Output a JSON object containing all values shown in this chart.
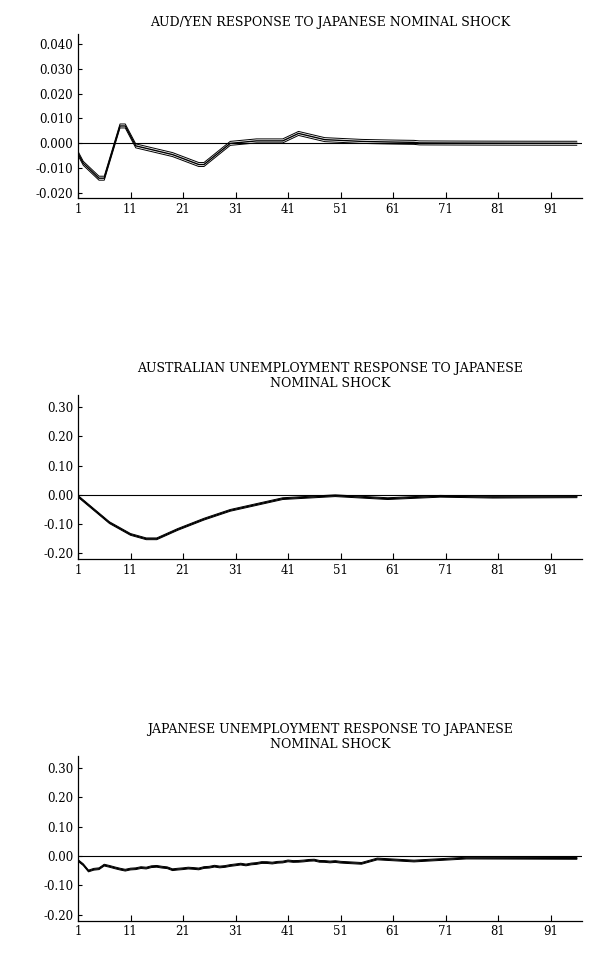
{
  "title1": "AUD/YEN RESPONSE TO JAPANESE NOMINAL SHOCK",
  "title2_line1": "AUSTRALIAN UNEMPLOYMENT RESPONSE TO JAPANESE",
  "title2_line2": "NOMINAL SHOCK",
  "title3_line1": "JAPANESE UNEMPLOYMENT RESPONSE TO JAPANESE",
  "title3_line2": "NOMINAL SHOCK",
  "x_ticks": [
    1,
    11,
    21,
    31,
    41,
    51,
    61,
    71,
    81,
    91
  ],
  "xlim": [
    1,
    97
  ],
  "plot1": {
    "ylim": [
      -0.022,
      0.044
    ],
    "yticks": [
      -0.02,
      -0.01,
      0.0,
      0.01,
      0.02,
      0.03,
      0.04
    ],
    "ytick_labels": [
      "-0.020",
      "-0.010",
      "0.000",
      "0.010",
      "0.020",
      "0.030",
      "0.040"
    ]
  },
  "plot2": {
    "ylim": [
      -0.22,
      0.34
    ],
    "yticks": [
      -0.2,
      -0.1,
      0.0,
      0.1,
      0.2,
      0.3
    ],
    "ytick_labels": [
      "-0.20",
      "-0.10",
      "0.00",
      "0.10",
      "0.20",
      "0.30"
    ]
  },
  "plot3": {
    "ylim": [
      -0.22,
      0.34
    ],
    "yticks": [
      -0.2,
      -0.1,
      0.0,
      0.1,
      0.2,
      0.3
    ],
    "ytick_labels": [
      "-0.20",
      "-0.10",
      "0.00",
      "0.10",
      "0.20",
      "0.30"
    ]
  },
  "line_color": "#000000",
  "bg_color": "#ffffff",
  "title_fontsize": 9.0,
  "tick_fontsize": 8.5
}
